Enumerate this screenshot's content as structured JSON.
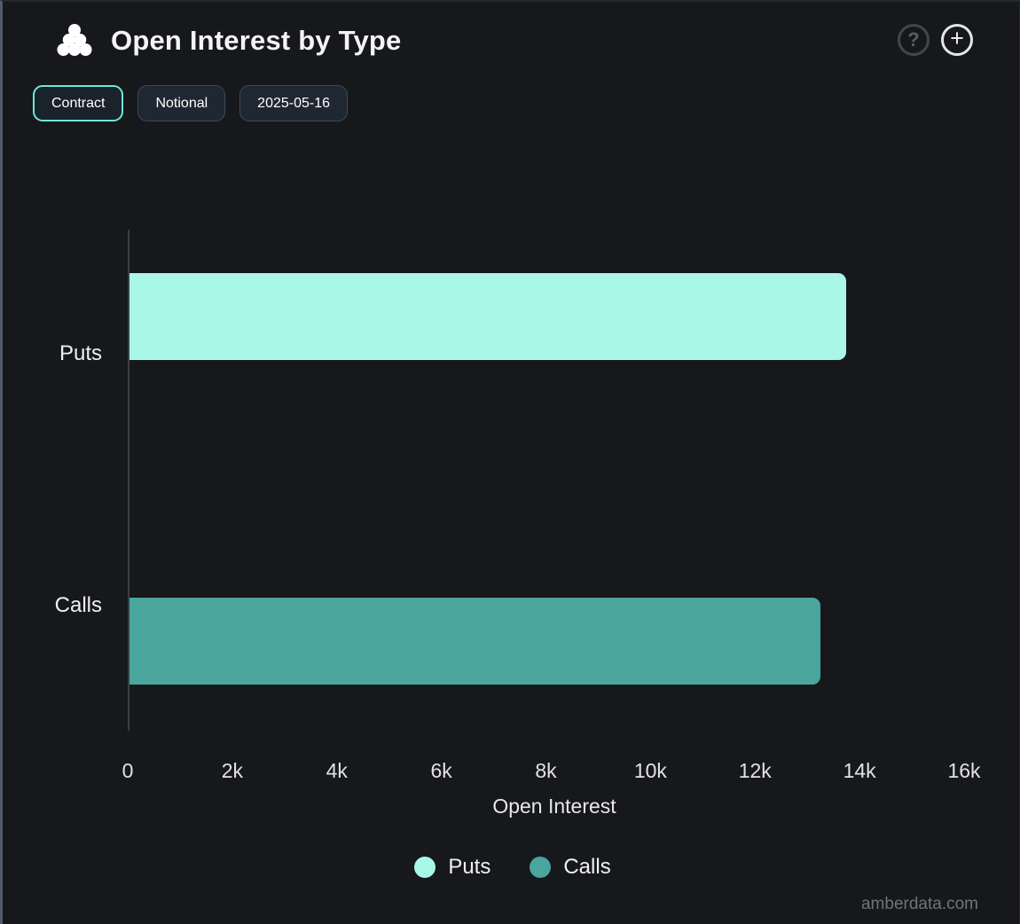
{
  "header": {
    "title": "Open Interest by Type",
    "help_glyph": "?",
    "add_glyph": "+"
  },
  "toolbar": {
    "buttons": [
      {
        "label": "Contract",
        "active": true
      },
      {
        "label": "Notional",
        "active": false
      },
      {
        "label": "2025-05-16",
        "active": false
      }
    ]
  },
  "chart_data": {
    "type": "bar",
    "orientation": "horizontal",
    "title": "Open Interest by Type",
    "categories": [
      "Puts",
      "Calls"
    ],
    "values": [
      13750,
      13250
    ],
    "colors": [
      "#a9f7e9",
      "#4aa59c"
    ],
    "xlabel": "Open Interest",
    "ylabel": "",
    "xlim": [
      0,
      16000
    ],
    "xticks": [
      0,
      2000,
      4000,
      6000,
      8000,
      10000,
      12000,
      14000,
      16000
    ],
    "xtick_labels": [
      "0",
      "2k",
      "4k",
      "6k",
      "8k",
      "10k",
      "12k",
      "14k",
      "16k"
    ],
    "grid": false,
    "legend_position": "bottom",
    "legend": [
      {
        "label": "Puts",
        "color": "#a9f7e9"
      },
      {
        "label": "Calls",
        "color": "#4aa59c"
      }
    ]
  },
  "watermark": "amberdata.com",
  "colors": {
    "background": "#16181c",
    "accent_active_border": "#6ee8d5",
    "puts_bar": "#a9f7e9",
    "calls_bar": "#4aa59c",
    "axis_line": "#3a3e44"
  }
}
